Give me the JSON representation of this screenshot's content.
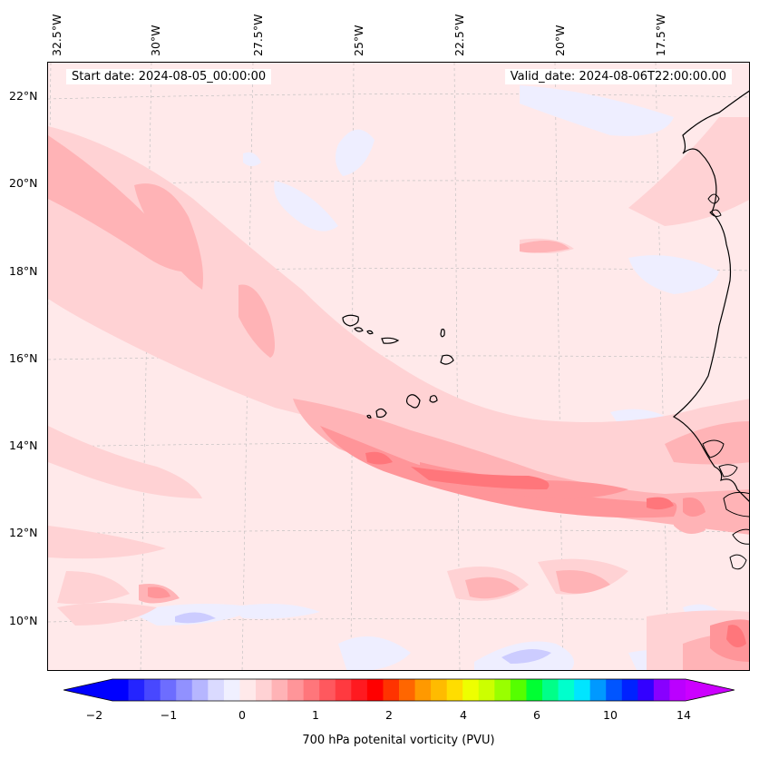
{
  "header": {
    "start_date": "Start date: 2024-08-05_00:00:00",
    "valid_date": "Valid_date: 2024-08-06T22:00:00.00"
  },
  "axes": {
    "longitude_labels": [
      "32.5°W",
      "30°W",
      "27.5°W",
      "25°W",
      "22.5°W",
      "20°W",
      "17.5°W"
    ],
    "latitude_labels": [
      "22°N",
      "20°N",
      "18°N",
      "16°N",
      "14°N",
      "12°N",
      "10°N"
    ]
  },
  "colorbar": {
    "label": "700 hPa potenital vorticity (PVU)",
    "tick_labels": [
      "−2",
      "−1",
      "0",
      "1",
      "2",
      "4",
      "6",
      "10",
      "14"
    ],
    "colors": [
      "#0000ff",
      "#2424ff",
      "#4848ff",
      "#6d6dff",
      "#9191ff",
      "#b6b6ff",
      "#dadaff",
      "#f0f0ff",
      "#ffe9ea",
      "#ffd2d4",
      "#ffb3b6",
      "#ff9599",
      "#ff767b",
      "#ff585e",
      "#ff3a40",
      "#ff1a20",
      "#ff0000",
      "#ff3300",
      "#ff6600",
      "#ff9900",
      "#ffbb00",
      "#ffdd00",
      "#eeff00",
      "#ccff00",
      "#99ff00",
      "#55ff00",
      "#00ff33",
      "#00ff88",
      "#00ffcc",
      "#00e5ff",
      "#0099ff",
      "#0055ff",
      "#0022ff",
      "#3300ff",
      "#8800ff",
      "#bb00ff"
    ],
    "left_arrow_color": "#0000ff",
    "right_arrow_color": "#cc00ff"
  },
  "map": {
    "background_color": "#ffe9ea",
    "coastline_color": "#000000"
  }
}
